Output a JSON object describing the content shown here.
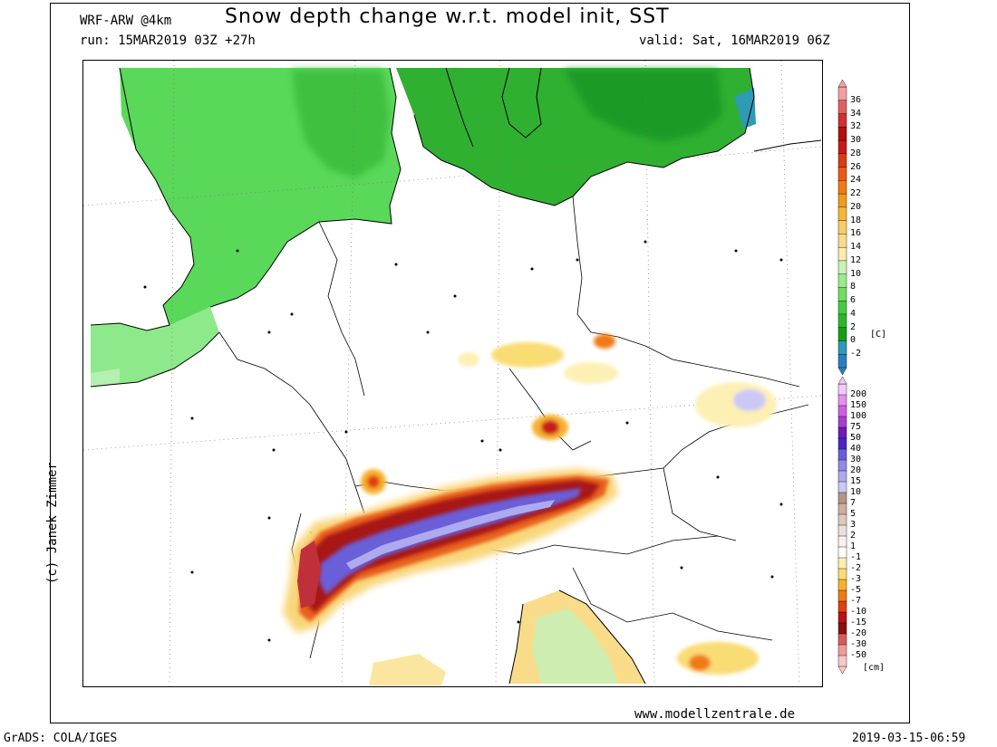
{
  "header": {
    "model": "WRF-ARW @4km",
    "title": "Snow depth change w.r.t. model init, SST",
    "run": "run: 15MAR2019 03Z +27h",
    "valid": "valid: Sat, 16MAR2019 06Z"
  },
  "footer": {
    "website": "www.modellzentrale.de",
    "software": "GrADS: COLA/IGES",
    "timestamp": "2019-03-15-06:59",
    "credit": "(c) Janek Zimmer"
  },
  "colorbars": {
    "sst": {
      "unit": "[C]",
      "labels": [
        "36",
        "34",
        "32",
        "30",
        "28",
        "26",
        "24",
        "22",
        "20",
        "18",
        "16",
        "14",
        "12",
        "10",
        "8",
        "6",
        "4",
        "2",
        "0",
        "-2"
      ],
      "colors": [
        "#f5a0a0",
        "#e06060",
        "#d03030",
        "#b01010",
        "#c81a1a",
        "#dc3a12",
        "#ea5a10",
        "#f27a12",
        "#f59a18",
        "#f7b63a",
        "#f8cc62",
        "#fadc8c",
        "#fbecae",
        "#c9f1b8",
        "#9aeb8a",
        "#6ede60",
        "#46cc40",
        "#2ab82a",
        "#14a014",
        "#2e9ab4",
        "#2b7fc0"
      ]
    },
    "snow": {
      "unit": "[cm]",
      "labels": [
        "200",
        "150",
        "100",
        "75",
        "50",
        "40",
        "30",
        "20",
        "15",
        "10",
        "7",
        "5",
        "3",
        "2",
        "1",
        "-1",
        "-2",
        "-3",
        "-5",
        "-7",
        "-10",
        "-15",
        "-20",
        "-30",
        "-50"
      ],
      "colors": [
        "#f3c9f6",
        "#e490ef",
        "#cd60e2",
        "#a63fd0",
        "#6d1ab8",
        "#4a26c8",
        "#6a5ed8",
        "#8e8ae6",
        "#aeaaef",
        "#cbc8f6",
        "#b89488",
        "#cdaea2",
        "#dec8bf",
        "#ece0da",
        "#f8f2ef",
        "#ffffff",
        "#fdf0b4",
        "#fadc74",
        "#f7b02e",
        "#f07a14",
        "#e0400e",
        "#b81212",
        "#8a1212",
        "#d85a5a",
        "#f09a9a",
        "#f8c8c8"
      ]
    }
  }
}
